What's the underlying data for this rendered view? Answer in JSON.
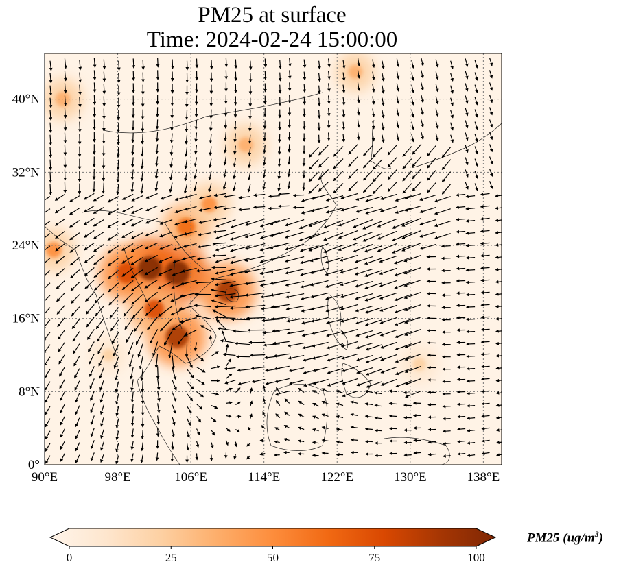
{
  "title": {
    "line1": "PM25 at surface",
    "line2": "Time: 2024-02-24 15:00:00"
  },
  "map": {
    "lon_range": [
      90,
      140
    ],
    "lat_range": [
      0,
      45
    ],
    "lon_ticks": [
      {
        "value": 90,
        "label": "90°E"
      },
      {
        "value": 98,
        "label": "98°E"
      },
      {
        "value": 106,
        "label": "106°E"
      },
      {
        "value": 114,
        "label": "114°E"
      },
      {
        "value": 122,
        "label": "122°E"
      },
      {
        "value": 130,
        "label": "130°E"
      },
      {
        "value": 138,
        "label": "138°E"
      }
    ],
    "lat_ticks": [
      {
        "value": 0,
        "label": "0°"
      },
      {
        "value": 8,
        "label": "8°N"
      },
      {
        "value": 16,
        "label": "16°N"
      },
      {
        "value": 24,
        "label": "24°N"
      },
      {
        "value": 32,
        "label": "32°N"
      },
      {
        "value": 40,
        "label": "40°N"
      }
    ],
    "gridlines": true,
    "vectors": "wind arrows (black)"
  },
  "colorbar": {
    "label": "PM25 (ug/m",
    "label_exponent": "3",
    "label_close": ")",
    "min": 0,
    "max": 100,
    "ticks": [
      {
        "value": 0,
        "label": "0"
      },
      {
        "value": 25,
        "label": "25"
      },
      {
        "value": 50,
        "label": "50"
      },
      {
        "value": 75,
        "label": "75"
      },
      {
        "value": 100,
        "label": "100"
      }
    ],
    "colormap": [
      "#fff5eb",
      "#fee6ce",
      "#fdd0a2",
      "#fdae6b",
      "#fd8d3c",
      "#f16913",
      "#d94801",
      "#a63603",
      "#7f2704"
    ],
    "extend": "both"
  },
  "pm25_hotspots": [
    {
      "lon": 101.5,
      "lat": 21.5,
      "value": 95
    },
    {
      "lon": 104.5,
      "lat": 21.0,
      "value": 100
    },
    {
      "lon": 99.0,
      "lat": 21.0,
      "value": 80
    },
    {
      "lon": 104.5,
      "lat": 14.0,
      "value": 90
    },
    {
      "lon": 110.0,
      "lat": 19.0,
      "value": 85
    },
    {
      "lon": 105.5,
      "lat": 26.0,
      "value": 60
    },
    {
      "lon": 108.0,
      "lat": 28.5,
      "value": 45
    },
    {
      "lon": 92.0,
      "lat": 40.0,
      "value": 40
    },
    {
      "lon": 112.0,
      "lat": 35.0,
      "value": 40
    },
    {
      "lon": 124.0,
      "lat": 43.0,
      "value": 35
    },
    {
      "lon": 131.0,
      "lat": 11.0,
      "value": 30
    },
    {
      "lon": 102.0,
      "lat": 17.0,
      "value": 70
    },
    {
      "lon": 91.0,
      "lat": 23.5,
      "value": 45
    },
    {
      "lon": 97.0,
      "lat": 12.0,
      "value": 25
    }
  ]
}
